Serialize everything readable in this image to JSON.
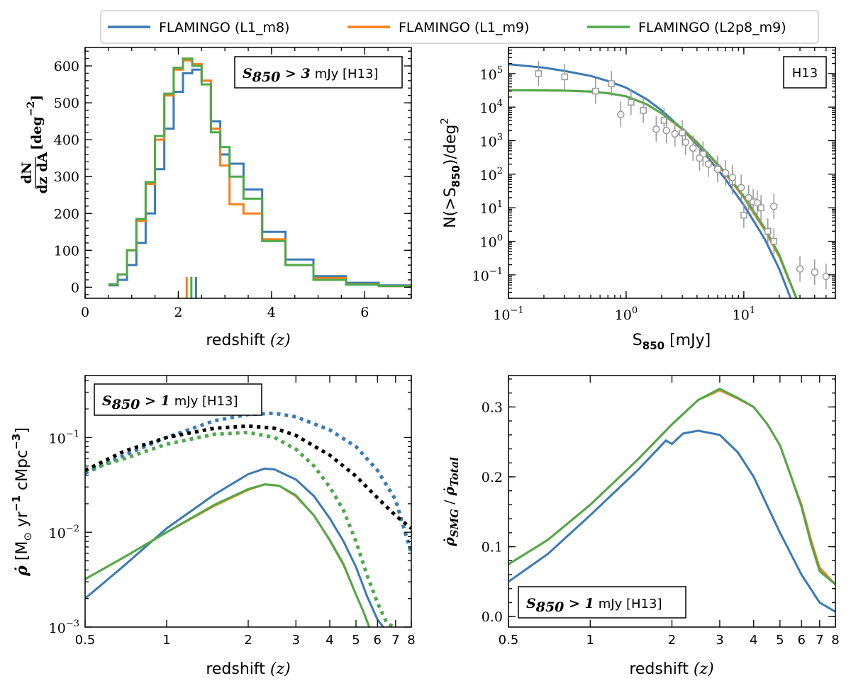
{
  "legend": {
    "entries": [
      {
        "label": "FLAMINGO (L1_m8)",
        "color": "#3a7ab5"
      },
      {
        "label": "FLAMINGO (L1_m9)",
        "color": "#f5801e"
      },
      {
        "label": "FLAMINGO (L2p8_m9)",
        "color": "#4fa94a"
      }
    ]
  },
  "colors": {
    "m8": "#3a7ab5",
    "m9": "#f5801e",
    "l2p8": "#4fa94a",
    "obs": "#999999",
    "total": "#000000"
  },
  "chart_data": [
    {
      "id": "redshift_distribution",
      "type": "line",
      "step": true,
      "annotation": {
        "lhs": "S",
        "sub": "850",
        "rel": " > 3",
        "text": "mJy [H13]"
      },
      "ylabel": {
        "num": "dN",
        "den": "dz dA",
        "unit": "[deg",
        "exp": "−2",
        "close": "]"
      },
      "xlabel": {
        "text": "redshift",
        "var": "(z)"
      },
      "xlim": [
        0,
        7
      ],
      "ylim": [
        -30,
        650
      ],
      "xticks": [
        0,
        2,
        4,
        6
      ],
      "yticks": [
        0,
        100,
        200,
        300,
        400,
        500,
        600
      ],
      "series": [
        {
          "name": "FLAMINGO (L1_m8)",
          "x": [
            0.5,
            0.7,
            0.9,
            1.1,
            1.3,
            1.5,
            1.7,
            1.9,
            2.1,
            2.3,
            2.5,
            2.7,
            2.9,
            3.1,
            3.4,
            3.8,
            4.3,
            4.9,
            5.6,
            6.3,
            7.0
          ],
          "y": [
            5,
            20,
            60,
            120,
            200,
            320,
            430,
            530,
            580,
            590,
            560,
            450,
            360,
            335,
            265,
            150,
            75,
            30,
            12,
            5,
            3
          ],
          "median_z": 2.38
        },
        {
          "name": "FLAMINGO (L1_m9)",
          "x": [
            0.5,
            0.7,
            0.9,
            1.1,
            1.3,
            1.5,
            1.7,
            1.9,
            2.1,
            2.3,
            2.5,
            2.7,
            2.9,
            3.1,
            3.4,
            3.8,
            4.3,
            4.9,
            5.6,
            6.3,
            7.0
          ],
          "y": [
            8,
            35,
            100,
            180,
            280,
            400,
            520,
            590,
            615,
            605,
            560,
            430,
            330,
            225,
            200,
            130,
            60,
            25,
            8,
            3,
            1
          ],
          "median_z": 2.18
        },
        {
          "name": "FLAMINGO (L2p8_m9)",
          "x": [
            0.5,
            0.7,
            0.9,
            1.1,
            1.3,
            1.5,
            1.7,
            1.9,
            2.1,
            2.3,
            2.5,
            2.7,
            2.9,
            3.1,
            3.4,
            3.8,
            4.3,
            4.9,
            5.6,
            6.3,
            7.0
          ],
          "y": [
            8,
            35,
            100,
            185,
            285,
            410,
            525,
            595,
            620,
            600,
            550,
            420,
            380,
            300,
            240,
            125,
            60,
            20,
            7,
            3,
            1
          ],
          "median_z": 2.28
        }
      ]
    },
    {
      "id": "number_counts",
      "type": "line",
      "xscale": "log",
      "yscale": "log",
      "annotation": {
        "text": "H13"
      },
      "ylabel": {
        "pre": "N(>S",
        "sub": "850",
        "post": ")/deg",
        "exp": "2"
      },
      "xlabel": {
        "pre": "S",
        "sub": "850",
        "post": " [mJy]"
      },
      "xlim": [
        0.1,
        60
      ],
      "ylim": [
        0.02,
        600000
      ],
      "xticks": [
        {
          "v": 0.1,
          "base": "10",
          "exp": "−1"
        },
        {
          "v": 1,
          "base": "10",
          "exp": "0"
        },
        {
          "v": 10,
          "base": "10",
          "exp": "1"
        }
      ],
      "yticks": [
        {
          "v": 0.1,
          "base": "10",
          "exp": "−1"
        },
        {
          "v": 1,
          "base": "10",
          "exp": "0"
        },
        {
          "v": 10,
          "base": "10",
          "exp": "1"
        },
        {
          "v": 100,
          "base": "10",
          "exp": "2"
        },
        {
          "v": 1000,
          "base": "10",
          "exp": "3"
        },
        {
          "v": 10000,
          "base": "10",
          "exp": "4"
        },
        {
          "v": 100000,
          "base": "10",
          "exp": "5"
        }
      ],
      "series": [
        {
          "name": "FLAMINGO (L1_m8)",
          "x": [
            0.1,
            0.2,
            0.3,
            0.5,
            0.7,
            1,
            1.5,
            2,
            3,
            4,
            5,
            7,
            10,
            15,
            20,
            25
          ],
          "y": [
            190000,
            150000,
            120000,
            85000,
            60000,
            38000,
            17000,
            8000,
            2200,
            750,
            300,
            70,
            12,
            1.2,
            0.15,
            0.02
          ]
        },
        {
          "name": "FLAMINGO (L1_m9)",
          "x": [
            0.1,
            0.2,
            0.3,
            0.5,
            0.7,
            1,
            1.5,
            2,
            3,
            4,
            5,
            7,
            10,
            15,
            20,
            28
          ],
          "y": [
            32000,
            31500,
            31000,
            29000,
            26000,
            21000,
            12000,
            6500,
            2200,
            850,
            380,
            100,
            20,
            2.2,
            0.35,
            0.02
          ]
        },
        {
          "name": "FLAMINGO (L2p8_m9)",
          "x": [
            0.1,
            0.2,
            0.3,
            0.5,
            0.7,
            1,
            1.5,
            2,
            3,
            4,
            5,
            7,
            10,
            15,
            20,
            28
          ],
          "y": [
            32000,
            31500,
            31000,
            29000,
            26000,
            21000,
            12000,
            6500,
            2300,
            900,
            400,
            110,
            22,
            2.5,
            0.4,
            0.02
          ]
        },
        {
          "name": "observations (squares)",
          "marker": "square",
          "x": [
            0.18,
            0.3,
            0.55,
            0.75,
            1.1,
            1.4,
            2.1,
            3,
            4.5,
            6,
            8,
            10,
            12,
            14,
            16,
            18
          ],
          "y": [
            100000,
            80000,
            30000,
            50000,
            14000,
            8000,
            4000,
            1700,
            400,
            150,
            60,
            6,
            15,
            10,
            2,
            1
          ]
        },
        {
          "name": "observations (circles)",
          "marker": "circle",
          "x": [
            0.9,
            1.8,
            2.2,
            2.6,
            3.2,
            3.7,
            4.2,
            5,
            6,
            7,
            8,
            9.5,
            11,
            13,
            18,
            30,
            40,
            50
          ],
          "y": [
            6000,
            2200,
            2000,
            1600,
            900,
            600,
            300,
            200,
            140,
            110,
            80,
            40,
            20,
            14,
            11,
            0.15,
            0.12,
            0.09
          ]
        }
      ]
    },
    {
      "id": "sfr_density",
      "type": "line",
      "xscale": "log",
      "yscale": "log",
      "annotation": {
        "lhs": "S",
        "sub": "850",
        "rel": " > 1",
        "text": "mJy [H13]"
      },
      "ylabel": {
        "sym": "ρ̇",
        "unit": "[M",
        "sun": "⊙",
        "mid": " yr",
        "exp1": "−1",
        "mid2": " cMpc",
        "exp2": "−3",
        "close": "]"
      },
      "xlabel": {
        "text": "redshift",
        "var": "(z)"
      },
      "xlim": [
        0.5,
        8
      ],
      "ylim": [
        0.001,
        0.45
      ],
      "xticks": [
        0.5,
        1,
        2,
        3,
        4,
        5,
        6,
        7,
        8
      ],
      "yticks": [
        {
          "v": 0.001,
          "base": "10",
          "exp": "−3"
        },
        {
          "v": 0.01,
          "base": "10",
          "exp": "−2"
        },
        {
          "v": 0.1,
          "base": "10",
          "exp": "−1"
        }
      ],
      "series": [
        {
          "name": "FLAMINGO (L1_m8) total",
          "style": "dotted",
          "x": [
            0.5,
            0.7,
            1,
            1.5,
            2,
            2.5,
            3,
            4,
            5,
            6,
            7,
            8
          ],
          "y": [
            0.042,
            0.065,
            0.1,
            0.15,
            0.175,
            0.18,
            0.165,
            0.12,
            0.08,
            0.045,
            0.022,
            0.006
          ]
        },
        {
          "name": "FLAMINGO (L2p8_m9) total",
          "style": "dotted",
          "x": [
            0.5,
            0.7,
            1,
            1.5,
            2,
            2.5,
            3,
            3.5,
            4,
            4.5,
            5,
            5.5,
            6,
            6.5,
            6.9
          ],
          "y": [
            0.045,
            0.06,
            0.085,
            0.108,
            0.113,
            0.1,
            0.075,
            0.05,
            0.03,
            0.017,
            0.008,
            0.0035,
            0.0018,
            0.0011,
            0.001
          ]
        },
        {
          "name": "observed total",
          "style": "dotted",
          "x": [
            0.5,
            0.7,
            1,
            1.5,
            2,
            2.5,
            3,
            4,
            5,
            6,
            7,
            8
          ],
          "y": [
            0.045,
            0.072,
            0.1,
            0.125,
            0.132,
            0.125,
            0.105,
            0.065,
            0.039,
            0.023,
            0.015,
            0.011
          ]
        },
        {
          "name": "FLAMINGO (L1_m8)",
          "x": [
            0.5,
            0.7,
            1,
            1.5,
            2,
            2.3,
            2.5,
            3,
            3.5,
            4,
            4.5,
            5,
            5.5,
            6,
            6.3
          ],
          "y": [
            0.002,
            0.0045,
            0.011,
            0.025,
            0.041,
            0.047,
            0.046,
            0.036,
            0.024,
            0.014,
            0.008,
            0.0043,
            0.0021,
            0.0012,
            0.001
          ]
        },
        {
          "name": "FLAMINGO (L1_m9)",
          "x": [
            0.5,
            0.7,
            1,
            1.5,
            2,
            2.3,
            2.6,
            3,
            3.5,
            4,
            4.5,
            5,
            5.3,
            5.6
          ],
          "y": [
            0.0032,
            0.0055,
            0.01,
            0.019,
            0.028,
            0.032,
            0.031,
            0.024,
            0.015,
            0.0082,
            0.0045,
            0.0022,
            0.0015,
            0.001
          ]
        },
        {
          "name": "FLAMINGO (L2p8_m9)",
          "x": [
            0.5,
            0.7,
            1,
            1.5,
            2,
            2.3,
            2.6,
            3,
            3.5,
            4,
            4.5,
            5,
            5.3,
            5.6
          ],
          "y": [
            0.0032,
            0.0055,
            0.01,
            0.0195,
            0.0285,
            0.032,
            0.031,
            0.0245,
            0.015,
            0.0083,
            0.0046,
            0.0022,
            0.0015,
            0.001
          ]
        }
      ]
    },
    {
      "id": "smg_fraction",
      "type": "line",
      "xscale": "log",
      "annotation": {
        "lhs": "S",
        "sub": "850",
        "rel": " > 1",
        "text": "mJy [H13]"
      },
      "ylabel": {
        "num": "ρ̇",
        "numsub": "SMG",
        "sep": " / ",
        "den": "ρ̇",
        "densub": "Total"
      },
      "xlabel": {
        "text": "redshift",
        "var": "(z)"
      },
      "xlim": [
        0.5,
        8
      ],
      "ylim": [
        -0.015,
        0.345
      ],
      "xticks": [
        0.5,
        1,
        2,
        3,
        4,
        5,
        6,
        7,
        8
      ],
      "yticks": [
        0.0,
        0.1,
        0.2,
        0.3
      ],
      "series": [
        {
          "name": "FLAMINGO (L1_m8)",
          "x": [
            0.5,
            0.7,
            1,
            1.5,
            1.9,
            2.0,
            2.2,
            2.5,
            3,
            3.5,
            4,
            5,
            6,
            7,
            8
          ],
          "y": [
            0.05,
            0.09,
            0.145,
            0.21,
            0.252,
            0.247,
            0.262,
            0.266,
            0.26,
            0.235,
            0.2,
            0.12,
            0.06,
            0.02,
            0.007
          ]
        },
        {
          "name": "FLAMINGO (L1_m9)",
          "x": [
            0.5,
            0.7,
            1,
            1.5,
            2,
            2.5,
            3,
            3.5,
            4,
            4.5,
            5,
            5.5,
            6,
            6.5,
            7,
            8
          ],
          "y": [
            0.075,
            0.11,
            0.16,
            0.225,
            0.275,
            0.31,
            0.324,
            0.312,
            0.3,
            0.275,
            0.245,
            0.2,
            0.16,
            0.11,
            0.07,
            0.046
          ]
        },
        {
          "name": "FLAMINGO (L2p8_m9)",
          "x": [
            0.5,
            0.7,
            1,
            1.5,
            2,
            2.5,
            3,
            3.5,
            4,
            4.5,
            5,
            5.5,
            6,
            6.5,
            7,
            8
          ],
          "y": [
            0.075,
            0.11,
            0.16,
            0.225,
            0.275,
            0.31,
            0.326,
            0.313,
            0.3,
            0.275,
            0.245,
            0.2,
            0.157,
            0.105,
            0.065,
            0.046
          ]
        }
      ]
    }
  ]
}
